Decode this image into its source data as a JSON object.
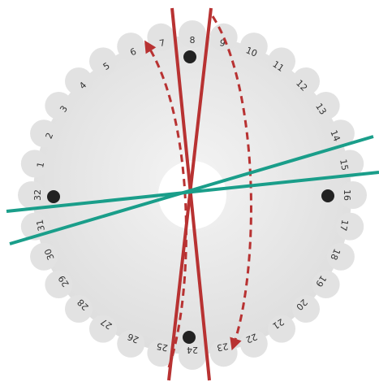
{
  "labels": [
    "1",
    "2",
    "3",
    "4",
    "5",
    "6",
    "7",
    "8",
    "9",
    "10",
    "11",
    "12",
    "13",
    "14",
    "15",
    "16",
    "17",
    "18",
    "19",
    "20",
    "21",
    "22",
    "23",
    "24",
    "25",
    "26",
    "27",
    "28",
    "29",
    "30",
    "31",
    "32"
  ]
}
